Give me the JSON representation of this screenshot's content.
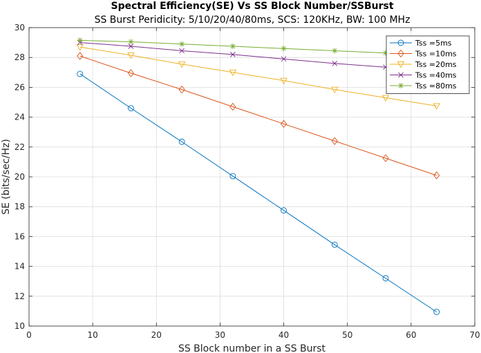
{
  "chart_data": {
    "type": "line",
    "title": "Spectral Efficiency(SE) Vs SS Block Number/SSBurst",
    "subtitle": "SS Burst Peridicity: 5/10/20/40/80ms, SCS: 120KHz, BW: 100 MHz",
    "xlabel": "SS Block number in a SS Burst",
    "ylabel": "SE (bits/sec/Hz)",
    "xlim": [
      0,
      70
    ],
    "ylim": [
      10,
      30
    ],
    "xticks": [
      "0",
      "10",
      "20",
      "30",
      "40",
      "50",
      "60",
      "70"
    ],
    "yticks": [
      "10",
      "12",
      "14",
      "16",
      "18",
      "20",
      "22",
      "24",
      "26",
      "28",
      "30"
    ],
    "grid": true,
    "legend_position": "top-right",
    "x": [
      8,
      16,
      24,
      32,
      40,
      48,
      56,
      64
    ],
    "series": [
      {
        "name": "Tss =5ms",
        "color": "#0072BD",
        "marker": "circle",
        "values": [
          26.9,
          24.6,
          22.35,
          20.05,
          17.75,
          15.45,
          13.2,
          10.95
        ]
      },
      {
        "name": "Tss =10ms",
        "color": "#D95319",
        "marker": "diamond",
        "values": [
          28.1,
          26.95,
          25.85,
          24.7,
          23.55,
          22.4,
          21.25,
          20.1
        ]
      },
      {
        "name": "Tss =20ms",
        "color": "#EDB120",
        "marker": "triangle-down",
        "values": [
          28.7,
          28.15,
          27.55,
          27.0,
          26.45,
          25.85,
          25.3,
          24.75
        ]
      },
      {
        "name": "Tss =40ms",
        "color": "#7E2F8E",
        "marker": "x",
        "values": [
          29.0,
          28.75,
          28.45,
          28.2,
          27.9,
          27.6,
          27.35,
          27.05
        ]
      },
      {
        "name": "Tss =80ms",
        "color": "#77AC30",
        "marker": "star",
        "values": [
          29.15,
          29.05,
          28.9,
          28.75,
          28.6,
          28.45,
          28.3,
          28.15
        ]
      }
    ]
  }
}
